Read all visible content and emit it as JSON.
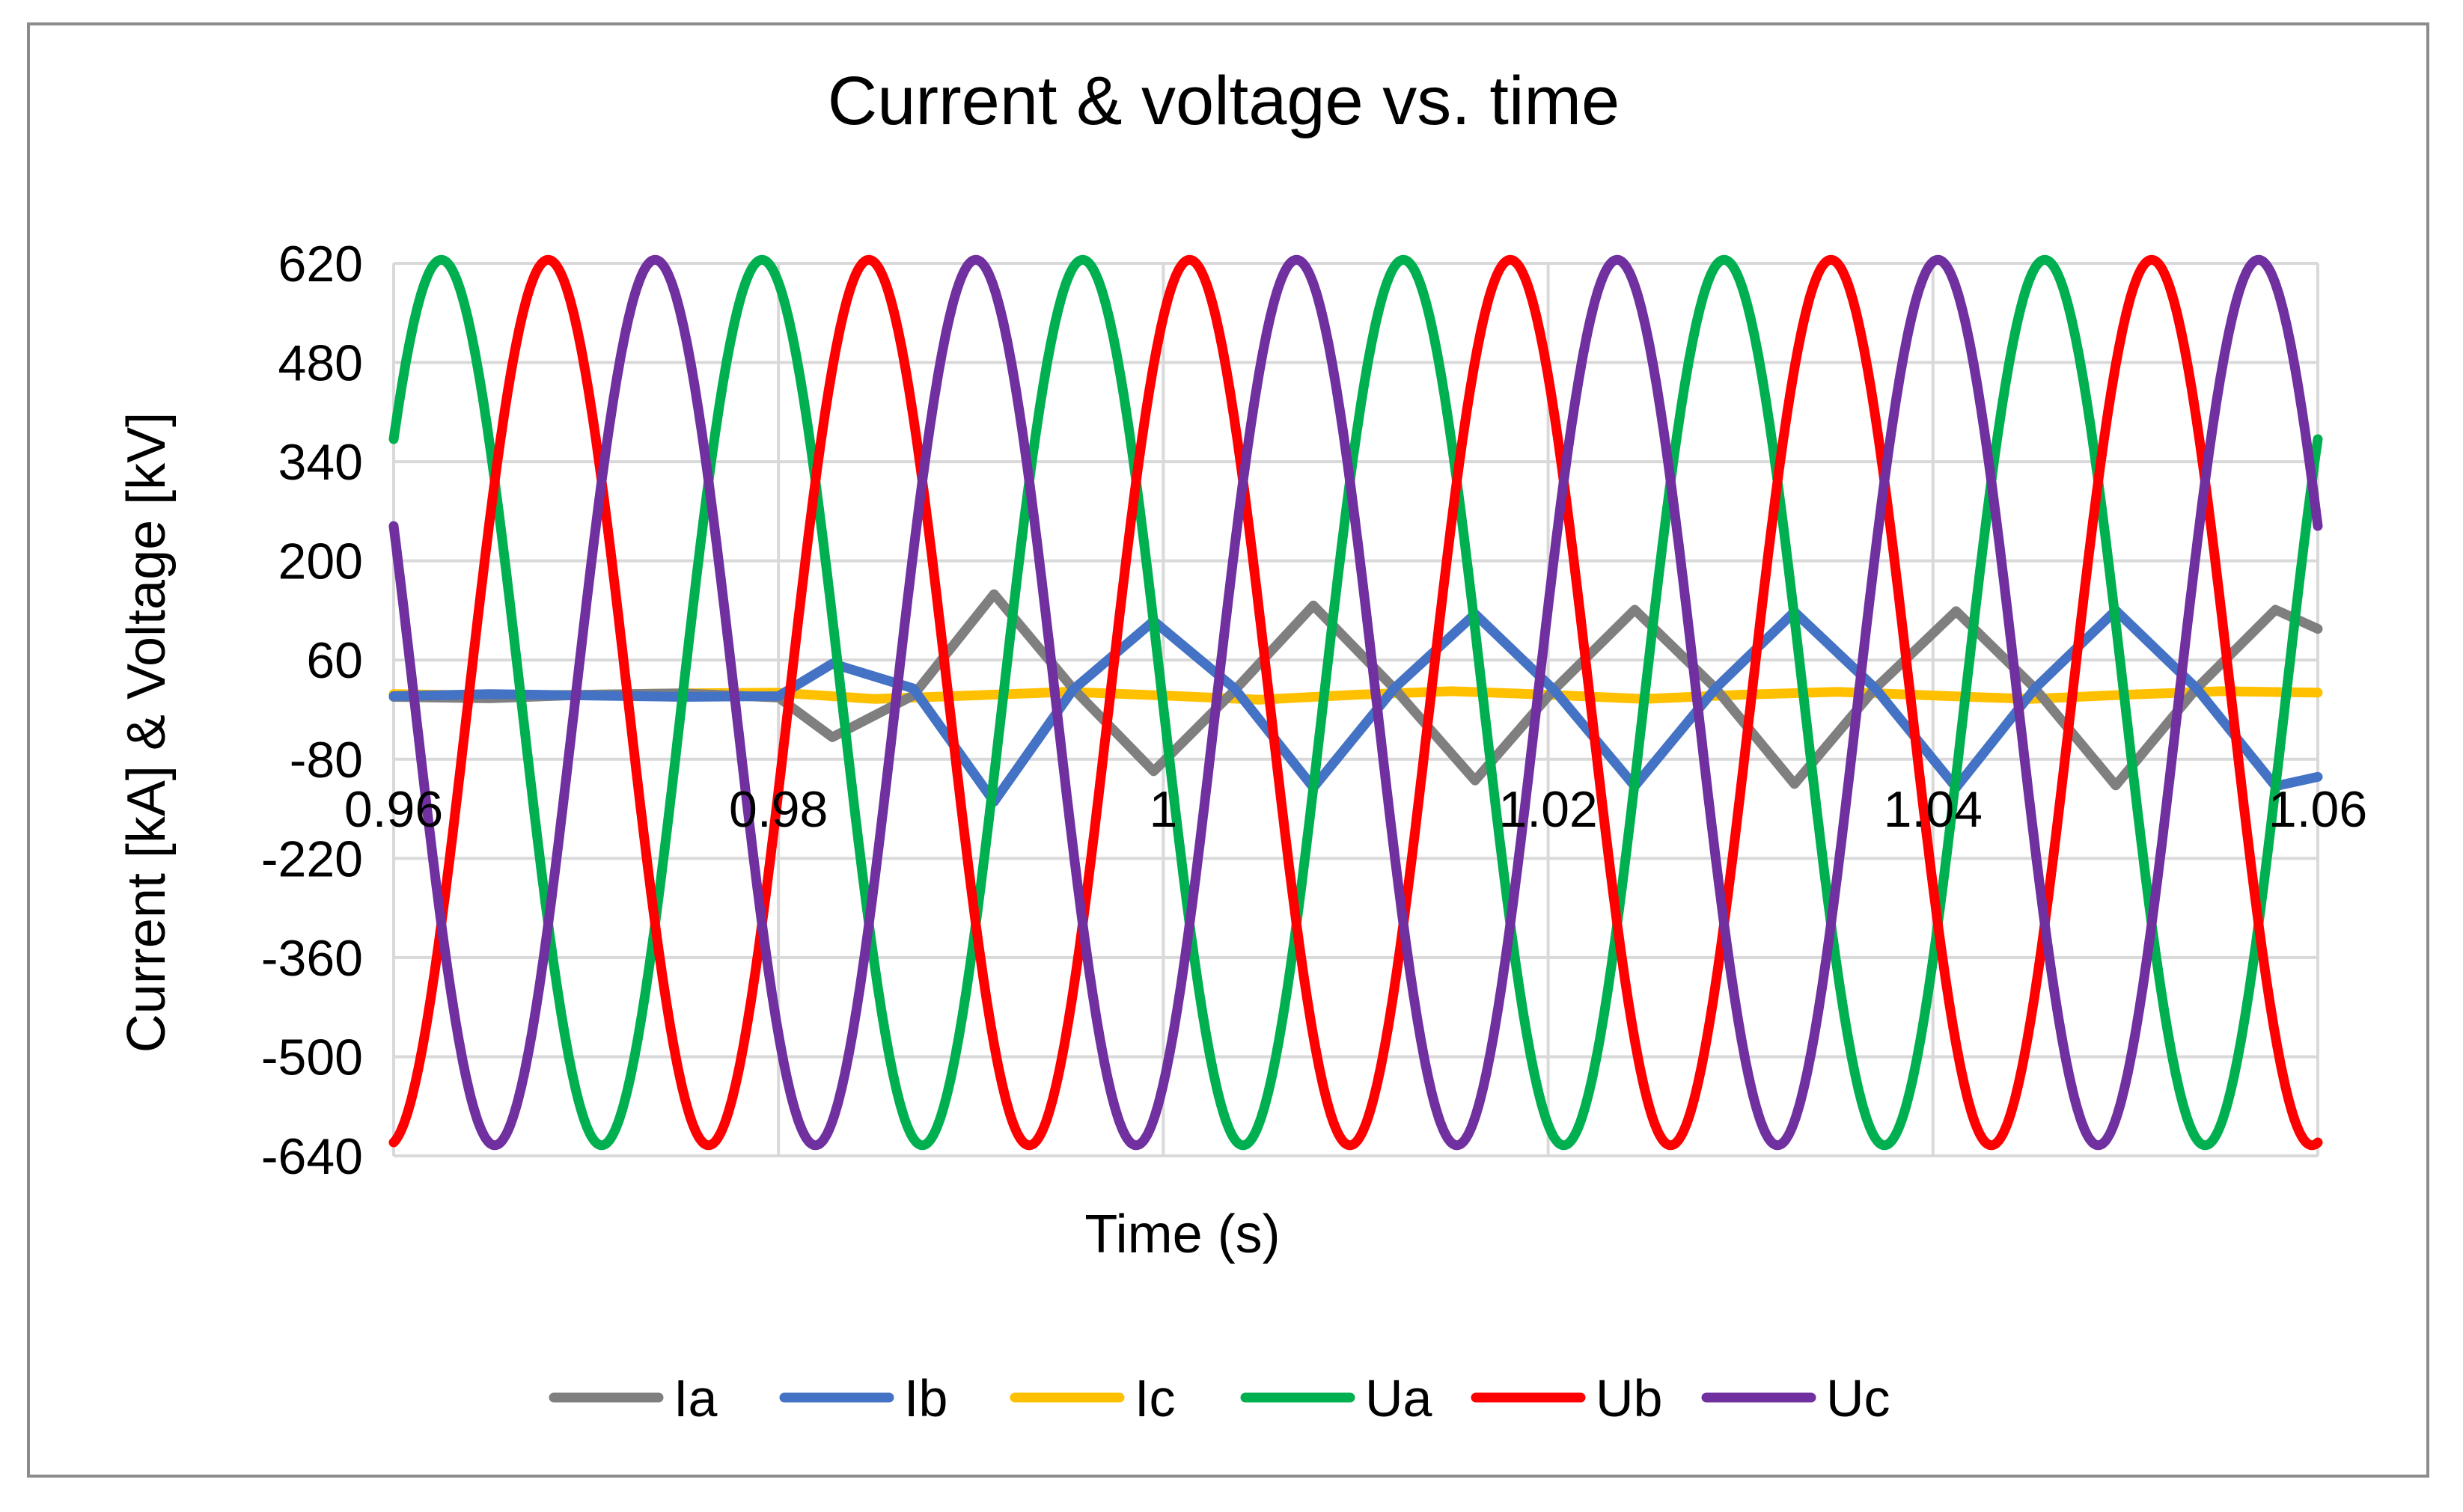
{
  "chart_data": {
    "type": "line",
    "title": "Current & voltage vs. time",
    "xlabel": "Time (s)",
    "ylabel": "Current [kA] & Voltage [kV]",
    "xlim": [
      0.96,
      1.06
    ],
    "ylim": [
      -640,
      620
    ],
    "x_ticks": [
      0.96,
      0.98,
      1.0,
      1.02,
      1.04,
      1.06
    ],
    "x_tick_labels": [
      "0.96",
      "0.98",
      "1",
      "1.02",
      "1.04",
      "1.06"
    ],
    "y_ticks": [
      620,
      480,
      340,
      200,
      60,
      -80,
      -220,
      -360,
      -500,
      -640
    ],
    "y_tick_labels": [
      "620",
      "480",
      "340",
      "200",
      "60",
      "-80",
      "-220",
      "-360",
      "-500",
      "-640"
    ],
    "grid": true,
    "legend_position": "bottom",
    "series": [
      {
        "name": "Ia",
        "color": "#7f7f7f",
        "points": [
          [
            0.96,
            8
          ],
          [
            0.965,
            6
          ],
          [
            0.97,
            11
          ],
          [
            0.975,
            13
          ],
          [
            0.98,
            7
          ],
          [
            0.9828,
            -49
          ],
          [
            0.987,
            10
          ],
          [
            0.9912,
            153
          ],
          [
            0.9953,
            20
          ],
          [
            0.9995,
            -97
          ],
          [
            1.0037,
            17
          ],
          [
            1.0078,
            137
          ],
          [
            1.012,
            20
          ],
          [
            1.0162,
            -110
          ],
          [
            1.0203,
            18
          ],
          [
            1.0245,
            131
          ],
          [
            1.0287,
            20
          ],
          [
            1.0328,
            -115
          ],
          [
            1.037,
            20
          ],
          [
            1.0412,
            129
          ],
          [
            1.0453,
            20
          ],
          [
            1.0495,
            -117
          ],
          [
            1.0537,
            20
          ],
          [
            1.0578,
            131
          ],
          [
            1.06,
            104
          ]
        ]
      },
      {
        "name": "Ib",
        "color": "#4472c4",
        "points": [
          [
            0.96,
            9
          ],
          [
            0.965,
            12
          ],
          [
            0.97,
            10
          ],
          [
            0.975,
            8
          ],
          [
            0.98,
            9
          ],
          [
            0.9828,
            55
          ],
          [
            0.987,
            20
          ],
          [
            0.9912,
            -140
          ],
          [
            0.9953,
            18
          ],
          [
            0.9995,
            115
          ],
          [
            1.0037,
            20
          ],
          [
            1.0078,
            -120
          ],
          [
            1.012,
            20
          ],
          [
            1.0162,
            125
          ],
          [
            1.0203,
            18
          ],
          [
            1.0245,
            -118
          ],
          [
            1.0287,
            20
          ],
          [
            1.0328,
            128
          ],
          [
            1.037,
            20
          ],
          [
            1.0412,
            -120
          ],
          [
            1.0453,
            20
          ],
          [
            1.0495,
            130
          ],
          [
            1.0537,
            20
          ],
          [
            1.0578,
            -118
          ],
          [
            1.06,
            -105
          ]
        ]
      },
      {
        "name": "Ic",
        "color": "#ffc000",
        "points": [
          [
            0.96,
            12
          ],
          [
            0.965,
            10
          ],
          [
            0.97,
            11
          ],
          [
            0.975,
            13
          ],
          [
            0.98,
            14
          ],
          [
            0.985,
            5
          ],
          [
            0.99,
            10
          ],
          [
            0.995,
            15
          ],
          [
            1.0,
            10
          ],
          [
            1.005,
            4
          ],
          [
            1.01,
            11
          ],
          [
            1.015,
            16
          ],
          [
            1.02,
            11
          ],
          [
            1.025,
            5
          ],
          [
            1.03,
            11
          ],
          [
            1.035,
            15
          ],
          [
            1.04,
            10
          ],
          [
            1.045,
            5
          ],
          [
            1.05,
            11
          ],
          [
            1.055,
            16
          ],
          [
            1.06,
            14
          ]
        ]
      },
      {
        "name": "Ua",
        "color": "#00b050",
        "amplitude": 625,
        "frequency_hz": 60,
        "phase_deg": 36.5,
        "points": [
          [
            0.96,
            367
          ],
          [
            0.9642,
            625
          ],
          [
            0.9725,
            -625
          ],
          [
            0.9808,
            625
          ],
          [
            0.9892,
            -625
          ],
          [
            0.9975,
            625
          ],
          [
            1.0058,
            -625
          ],
          [
            1.0142,
            625
          ],
          [
            1.0225,
            -625
          ],
          [
            1.0308,
            625
          ],
          [
            1.0392,
            -625
          ],
          [
            1.0475,
            625
          ],
          [
            1.0558,
            -625
          ],
          [
            1.06,
            367
          ]
        ]
      },
      {
        "name": "Ub",
        "color": "#ff0000",
        "amplitude": 625,
        "frequency_hz": 60,
        "phase_deg": -83.5,
        "points": [
          [
            0.96,
            255
          ],
          [
            0.9653,
            -625
          ],
          [
            0.9737,
            625
          ],
          [
            0.982,
            -625
          ],
          [
            0.9903,
            625
          ],
          [
            0.9987,
            -625
          ],
          [
            1.007,
            625
          ],
          [
            1.0153,
            -625
          ],
          [
            1.0237,
            625
          ],
          [
            1.032,
            -625
          ],
          [
            1.0403,
            625
          ],
          [
            1.0487,
            -625
          ],
          [
            1.057,
            625
          ],
          [
            1.06,
            255
          ]
        ]
      },
      {
        "name": "Uc",
        "color": "#7030a0",
        "amplitude": 625,
        "frequency_hz": 60,
        "phase_deg": 156.5,
        "points": [
          [
            0.96,
            -622
          ],
          [
            0.9675,
            625
          ],
          [
            0.9758,
            -625
          ],
          [
            0.9842,
            625
          ],
          [
            0.9925,
            -625
          ],
          [
            1.0008,
            625
          ],
          [
            1.0092,
            -625
          ],
          [
            1.0175,
            625
          ],
          [
            1.0258,
            -625
          ],
          [
            1.0342,
            625
          ],
          [
            1.0425,
            -625
          ],
          [
            1.0508,
            625
          ],
          [
            1.0592,
            -625
          ],
          [
            1.06,
            -622
          ]
        ]
      }
    ]
  }
}
